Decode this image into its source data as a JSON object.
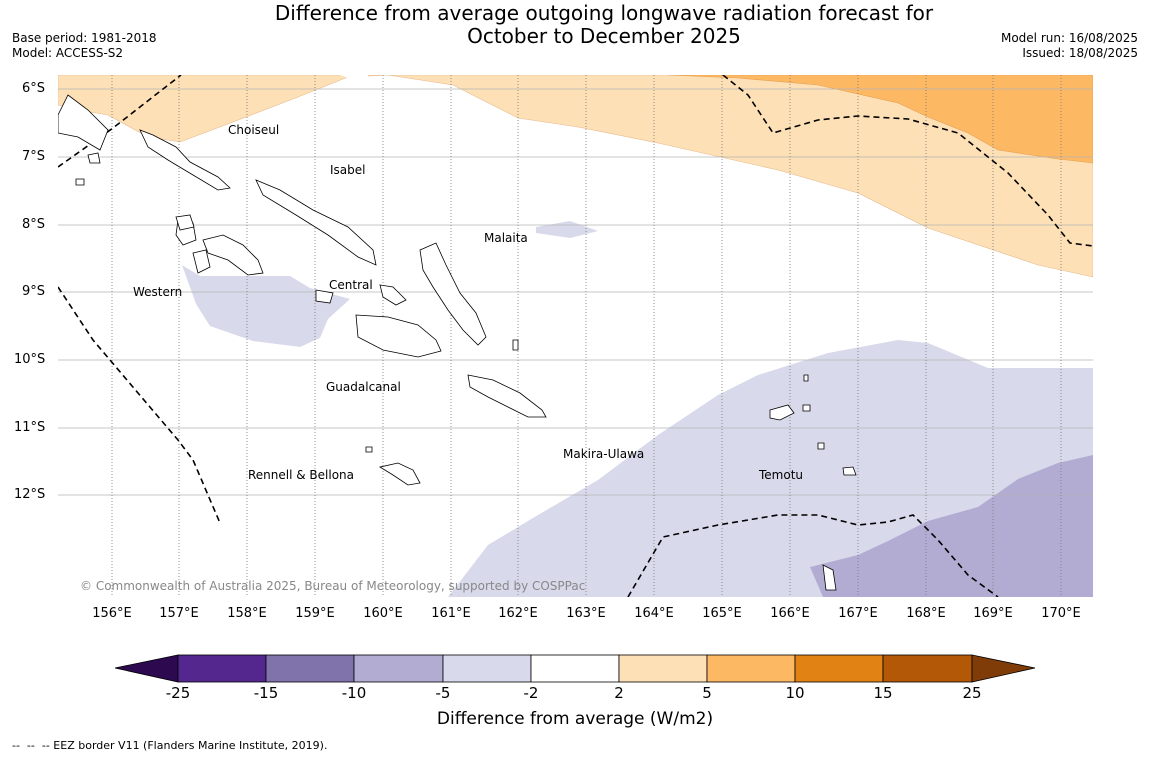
{
  "header": {
    "title_line1": "Difference from average outgoing longwave radiation forecast for",
    "title_line2": "October to December 2025",
    "base_period": "Base period: 1981-2018",
    "model": "Model: ACCESS-S2",
    "model_run": "Model run: 16/08/2025",
    "issued": "Issued: 18/08/2025"
  },
  "map": {
    "lat_labels": [
      "6°S",
      "7°S",
      "8°S",
      "9°S",
      "10°S",
      "11°S",
      "12°S"
    ],
    "lon_labels": [
      "156°E",
      "157°E",
      "158°E",
      "159°E",
      "160°E",
      "161°E",
      "162°E",
      "163°E",
      "164°E",
      "165°E",
      "166°E",
      "167°E",
      "168°E",
      "169°E",
      "170°E"
    ],
    "places": {
      "choiseul": "Choiseul",
      "isabel": "Isabel",
      "malaita": "Malaita",
      "western": "Western",
      "central": "Central",
      "guadalcanal": "Guadalcanal",
      "makira": "Makira-Ulawa",
      "rennell": "Rennell & Bellona",
      "temotu": "Temotu"
    },
    "copyright": "© Commonwealth of Australia 2025, Bureau of Meteorology, supported by COSPPac"
  },
  "colorbar": {
    "ticks": [
      "-25",
      "-15",
      "-10",
      "-5",
      "-2",
      "2",
      "5",
      "10",
      "15",
      "25"
    ],
    "colors": [
      "#2d0a4f",
      "#54278f",
      "#8073ac",
      "#b2abd2",
      "#d8daeb",
      "#ffffff",
      "#fee0b6",
      "#fdb863",
      "#e08214",
      "#b35806",
      "#7f3b08"
    ],
    "label": "Difference from average (W/m2)"
  },
  "footnote": "--  --  -- EEZ border V11 (Flanders Marine Institute, 2019)."
}
